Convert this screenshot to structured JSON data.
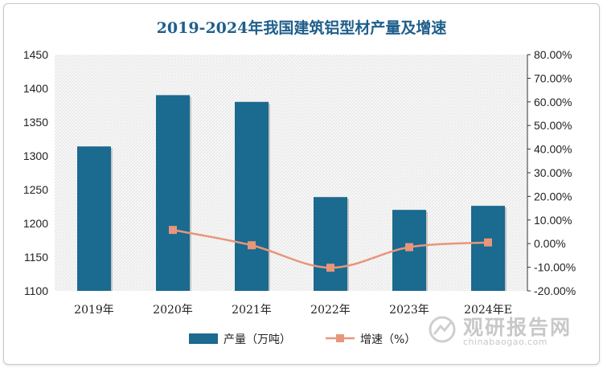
{
  "chart_data": {
    "type": "bar",
    "title": "2019-2024年我国建筑铝型材产量及增速",
    "categories": [
      "2019年",
      "2020年",
      "2021年",
      "2022年",
      "2023年",
      "2024年E"
    ],
    "series": [
      {
        "name": "产量（万吨）",
        "type": "bar",
        "axis": "left",
        "color": "#1b6a8f",
        "values": [
          1314,
          1390,
          1380,
          1239,
          1220,
          1226
        ]
      },
      {
        "name": "增速（%）",
        "type": "line",
        "axis": "right",
        "color": "#e8967a",
        "values": [
          null,
          5.8,
          -0.7,
          -10.2,
          -1.5,
          0.5
        ]
      }
    ],
    "y_left": {
      "min": 1100,
      "max": 1450,
      "ticks": [
        "1100",
        "1150",
        "1200",
        "1250",
        "1300",
        "1350",
        "1400",
        "1450"
      ]
    },
    "y_right": {
      "min": -20,
      "max": 80,
      "ticks": [
        "-20.00%",
        "-10.00%",
        "0.00%",
        "10.00%",
        "20.00%",
        "30.00%",
        "40.00%",
        "50.00%",
        "60.00%",
        "70.00%",
        "80.00%"
      ]
    },
    "legend_position": "bottom",
    "plot_background": "hatched-light-gray"
  },
  "watermark": {
    "main": "观研报告网",
    "sub": "chinabaogao.com"
  }
}
